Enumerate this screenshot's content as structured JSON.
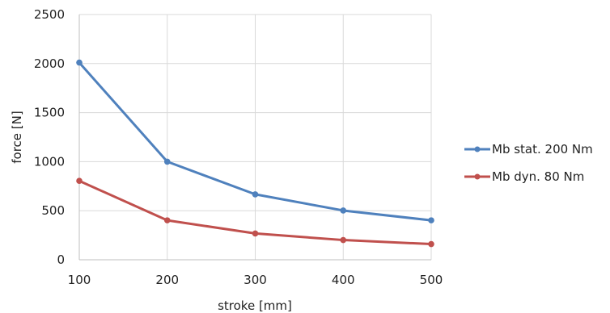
{
  "chart_data": {
    "type": "line",
    "xlabel": "stroke [mm]",
    "ylabel": "force [N]",
    "x": [
      100,
      200,
      300,
      400,
      500
    ],
    "xlim": [
      100,
      500
    ],
    "ylim": [
      0,
      2500
    ],
    "xticks": [
      "100",
      "200",
      "300",
      "400",
      "500"
    ],
    "yticks": [
      "0",
      "500",
      "1000",
      "1500",
      "2000",
      "2500"
    ],
    "grid": true,
    "legend_position": "right",
    "series": [
      {
        "name": "Mb stat. 200 Nm",
        "color": "#4f81bd",
        "values": [
          2010,
          1000,
          667,
          502,
          402
        ]
      },
      {
        "name": "Mb dyn. 80 Nm",
        "color": "#c0504d",
        "values": [
          804,
          402,
          268,
          201,
          160
        ]
      }
    ]
  }
}
